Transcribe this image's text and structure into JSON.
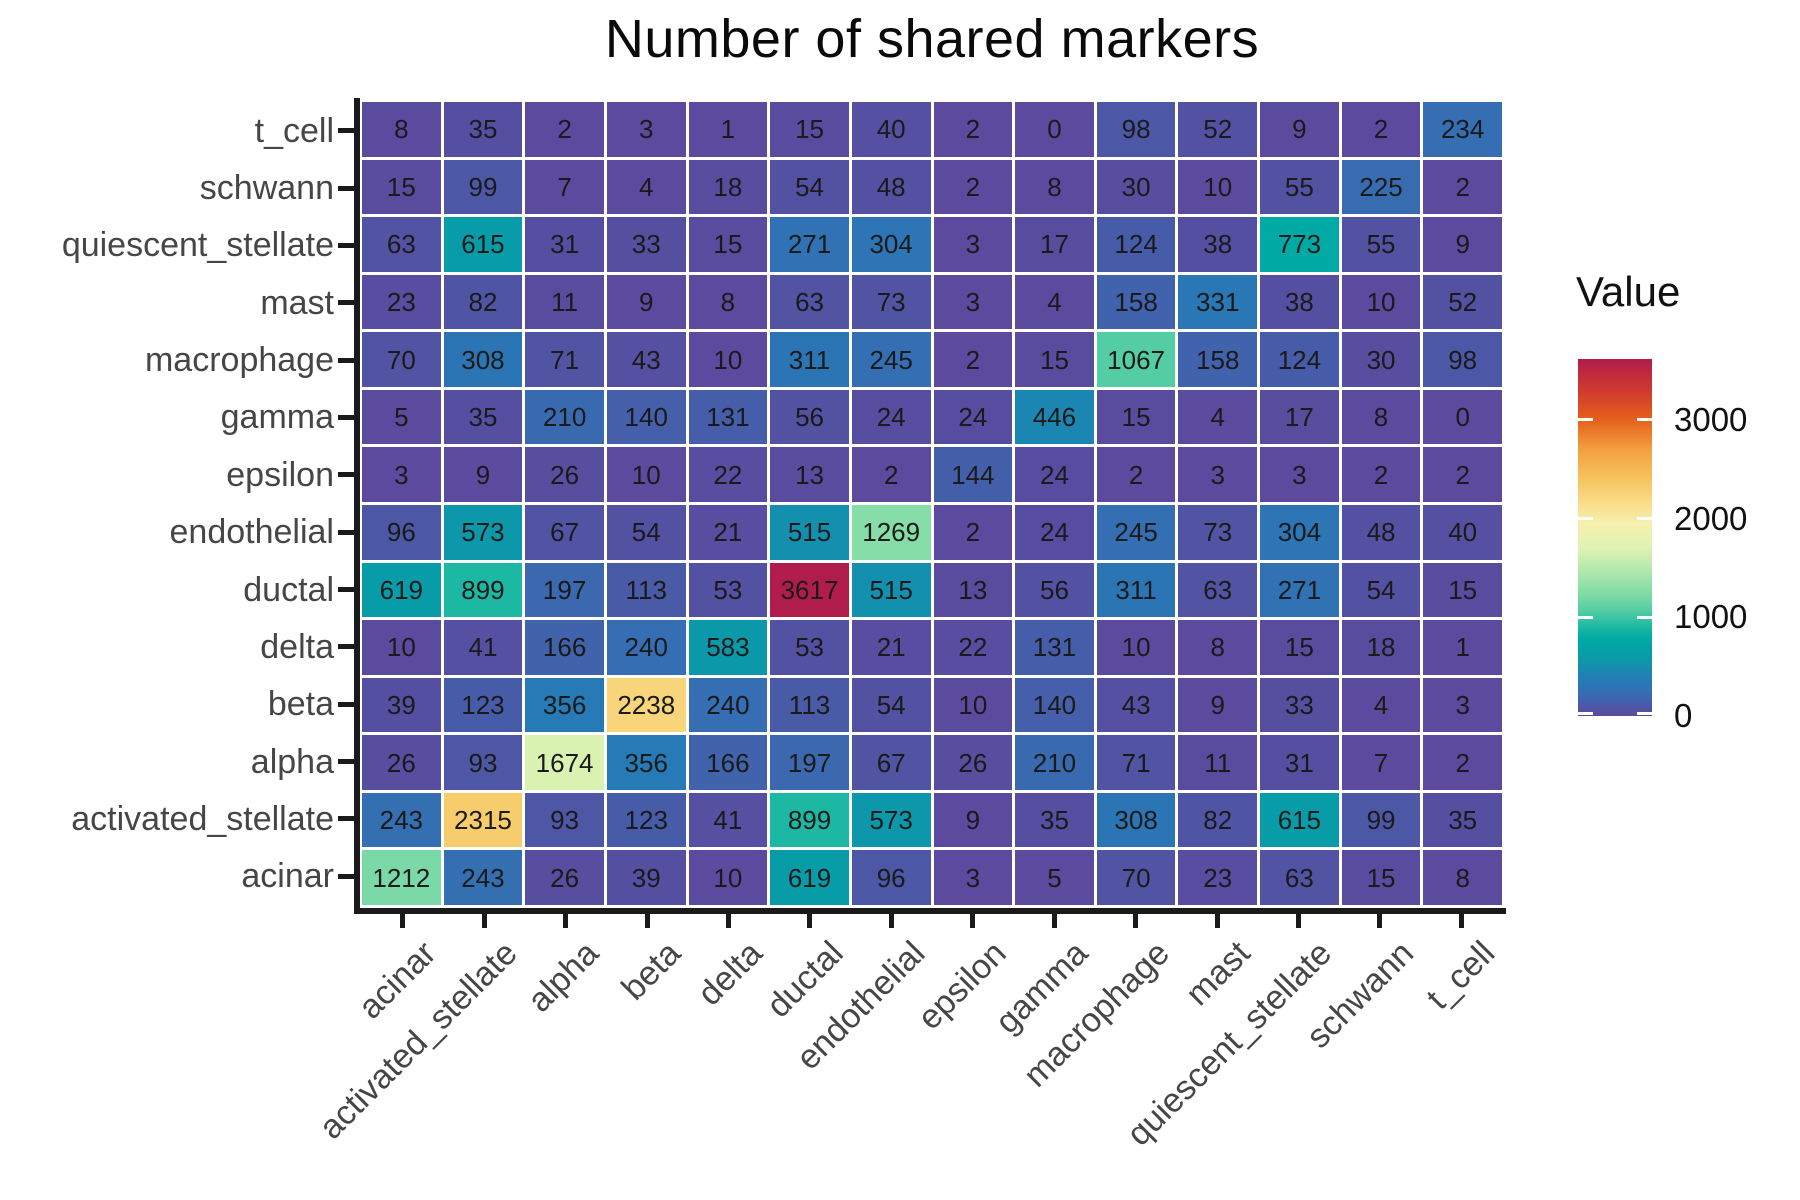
{
  "title": "Number of shared markers",
  "chart_data": {
    "type": "heatmap",
    "rows_top_to_bottom": [
      "t_cell",
      "schwann",
      "quiescent_stellate",
      "mast",
      "macrophage",
      "gamma",
      "epsilon",
      "endothelial",
      "ductal",
      "delta",
      "beta",
      "alpha",
      "activated_stellate",
      "acinar"
    ],
    "columns_left_to_right": [
      "acinar",
      "activated_stellate",
      "alpha",
      "beta",
      "delta",
      "ductal",
      "endothelial",
      "epsilon",
      "gamma",
      "macrophage",
      "mast",
      "quiescent_stellate",
      "schwann",
      "t_cell"
    ],
    "values": [
      [
        8,
        35,
        2,
        3,
        1,
        15,
        40,
        2,
        0,
        98,
        52,
        9,
        2,
        234
      ],
      [
        15,
        99,
        7,
        4,
        18,
        54,
        48,
        2,
        8,
        30,
        10,
        55,
        225,
        2
      ],
      [
        63,
        615,
        31,
        33,
        15,
        271,
        304,
        3,
        17,
        124,
        38,
        773,
        55,
        9
      ],
      [
        23,
        82,
        11,
        9,
        8,
        63,
        73,
        3,
        4,
        158,
        331,
        38,
        10,
        52
      ],
      [
        70,
        308,
        71,
        43,
        10,
        311,
        245,
        2,
        15,
        1067,
        158,
        124,
        30,
        98
      ],
      [
        5,
        35,
        210,
        140,
        131,
        56,
        24,
        24,
        446,
        15,
        4,
        17,
        8,
        0
      ],
      [
        3,
        9,
        26,
        10,
        22,
        13,
        2,
        144,
        24,
        2,
        3,
        3,
        2,
        2
      ],
      [
        96,
        573,
        67,
        54,
        21,
        515,
        1269,
        2,
        24,
        245,
        73,
        304,
        48,
        40
      ],
      [
        619,
        899,
        197,
        113,
        53,
        3617,
        515,
        13,
        56,
        311,
        63,
        271,
        54,
        15
      ],
      [
        10,
        41,
        166,
        240,
        583,
        53,
        21,
        22,
        131,
        10,
        8,
        15,
        18,
        1
      ],
      [
        39,
        123,
        356,
        2238,
        240,
        113,
        54,
        10,
        140,
        43,
        9,
        33,
        4,
        3
      ],
      [
        26,
        93,
        1674,
        356,
        166,
        197,
        67,
        26,
        210,
        71,
        11,
        31,
        7,
        2
      ],
      [
        243,
        2315,
        93,
        123,
        41,
        899,
        573,
        9,
        35,
        308,
        82,
        615,
        99,
        35
      ],
      [
        1212,
        243,
        26,
        39,
        10,
        619,
        96,
        3,
        5,
        70,
        23,
        63,
        15,
        8
      ]
    ],
    "value_range": [
      0,
      3617
    ],
    "legend": {
      "title": "Value",
      "ticks": [
        0,
        1000,
        2000,
        3000
      ]
    },
    "colormap_stops": [
      [
        0,
        "#5b4a9e"
      ],
      [
        80,
        "#4f55a4"
      ],
      [
        160,
        "#4162ac"
      ],
      [
        250,
        "#3370b3"
      ],
      [
        350,
        "#2779b6"
      ],
      [
        450,
        "#1b87b1"
      ],
      [
        560,
        "#0d97aa"
      ],
      [
        680,
        "#03a2a6"
      ],
      [
        800,
        "#01aca4"
      ],
      [
        920,
        "#23bba4"
      ],
      [
        1070,
        "#55cda4"
      ],
      [
        1220,
        "#7cdaa6"
      ],
      [
        1400,
        "#a2e4ab"
      ],
      [
        1700,
        "#dff3b2"
      ],
      [
        1950,
        "#f7f0ae"
      ],
      [
        2150,
        "#f9dd8b"
      ],
      [
        2400,
        "#f6c35e"
      ],
      [
        2700,
        "#f3a03f"
      ],
      [
        3000,
        "#e4611c"
      ],
      [
        3280,
        "#d13c2c"
      ],
      [
        3617,
        "#b01c4c"
      ]
    ],
    "layout": {
      "grid_gap_color": "#ffffff",
      "legend_position": "right"
    }
  },
  "colors": {
    "background": "#ffffff",
    "axis_line": "#1a1a1a",
    "axis_label_text": "#464646",
    "cell_text": "#1a1a1a",
    "title_text": "#0a0a0a",
    "legend_text": "#111111"
  }
}
